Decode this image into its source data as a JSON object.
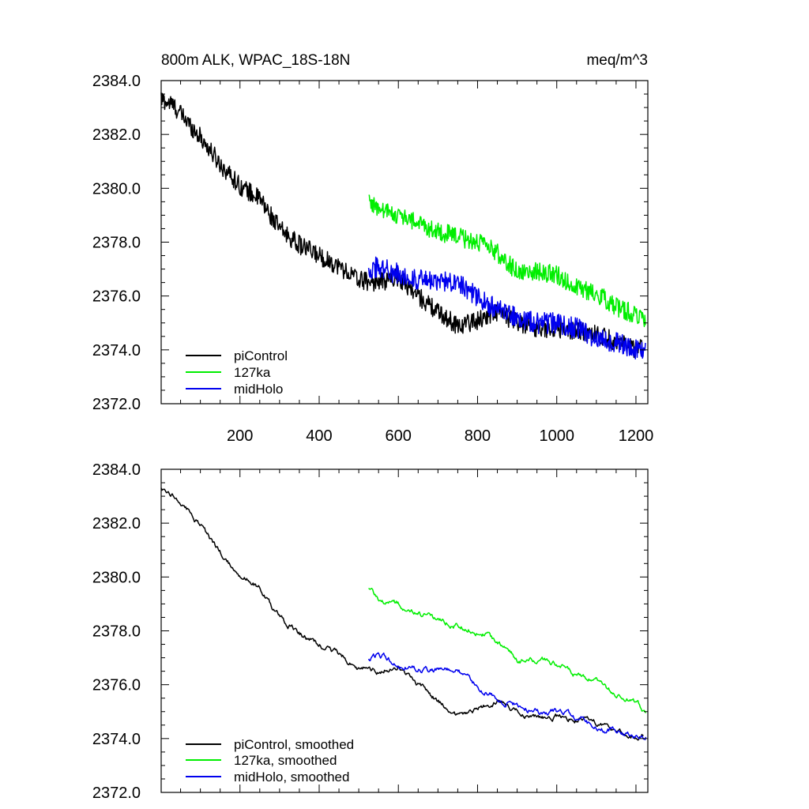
{
  "colors": {
    "piControl": "#000000",
    "127ka": "#00ee00",
    "midHolo": "#0000ee"
  },
  "chart_data": [
    {
      "type": "line",
      "title": "800m ALK, WPAC_18S-18N",
      "units": "meq/m^3",
      "xlim": [
        1,
        1230
      ],
      "ylim": [
        2372.0,
        2384.0
      ],
      "xticks": [
        200,
        400,
        600,
        800,
        1000,
        1200
      ],
      "xtick_labels": [
        "200",
        "400",
        "600",
        "800",
        "1000",
        "1200"
      ],
      "yticks": [
        "2384.0",
        "2382.0",
        "2380.0",
        "2378.0",
        "2376.0",
        "2374.0",
        "2372.0"
      ],
      "legend_position": "bottom-left",
      "series": [
        {
          "name": "piControl",
          "color": "#000000",
          "noise": 0.35,
          "x": [
            1,
            30,
            60,
            100,
            150,
            200,
            250,
            300,
            350,
            400,
            450,
            500,
            550,
            600,
            650,
            700,
            750,
            800,
            850,
            900,
            950,
            1000,
            1050,
            1100,
            1150,
            1200,
            1220
          ],
          "y": [
            2383.3,
            2383.1,
            2382.6,
            2381.9,
            2380.9,
            2380.1,
            2379.6,
            2378.5,
            2377.9,
            2377.5,
            2377.1,
            2376.6,
            2376.5,
            2376.7,
            2376.0,
            2375.4,
            2374.9,
            2375.1,
            2375.4,
            2375.0,
            2374.8,
            2374.8,
            2374.7,
            2374.6,
            2374.3,
            2374.0,
            2374.1
          ]
        },
        {
          "name": "127ka",
          "color": "#00ee00",
          "noise": 0.35,
          "x": [
            525,
            550,
            600,
            650,
            700,
            750,
            800,
            850,
            900,
            950,
            1000,
            1050,
            1100,
            1150,
            1200,
            1225
          ],
          "y": [
            2379.6,
            2379.2,
            2379.0,
            2378.7,
            2378.4,
            2378.2,
            2378.0,
            2377.6,
            2376.9,
            2376.9,
            2376.8,
            2376.3,
            2376.1,
            2375.6,
            2375.3,
            2375.0
          ]
        },
        {
          "name": "midHolo",
          "color": "#0000ee",
          "noise": 0.4,
          "x": [
            525,
            550,
            600,
            650,
            700,
            750,
            800,
            850,
            900,
            950,
            1000,
            1050,
            1100,
            1150,
            1200,
            1225
          ],
          "y": [
            2377.0,
            2377.1,
            2376.8,
            2376.6,
            2376.5,
            2376.6,
            2375.9,
            2375.5,
            2375.2,
            2375.0,
            2375.0,
            2374.8,
            2374.4,
            2374.3,
            2374.0,
            2374.1
          ]
        }
      ]
    },
    {
      "type": "line",
      "title": "",
      "xlim": [
        1,
        1230
      ],
      "ylim": [
        2372.0,
        2384.0
      ],
      "xticks": [
        200,
        400,
        600,
        800,
        1000,
        1200
      ],
      "xtick_labels": [],
      "yticks": [
        "2384.0",
        "2382.0",
        "2380.0",
        "2378.0",
        "2376.0",
        "2374.0",
        "2372.0"
      ],
      "legend_position": "bottom-left",
      "series": [
        {
          "name": "piControl, smoothed",
          "color": "#000000",
          "noise": 0.12,
          "x": [
            1,
            30,
            60,
            100,
            150,
            200,
            250,
            300,
            350,
            400,
            450,
            500,
            550,
            600,
            650,
            700,
            750,
            800,
            850,
            900,
            950,
            1000,
            1050,
            1100,
            1150,
            1200,
            1220
          ],
          "y": [
            2383.3,
            2383.1,
            2382.6,
            2381.9,
            2380.9,
            2380.1,
            2379.6,
            2378.5,
            2377.9,
            2377.5,
            2377.1,
            2376.6,
            2376.5,
            2376.7,
            2376.0,
            2375.4,
            2374.9,
            2375.1,
            2375.4,
            2375.0,
            2374.8,
            2374.8,
            2374.7,
            2374.6,
            2374.3,
            2374.0,
            2374.1
          ]
        },
        {
          "name": "127ka, smoothed",
          "color": "#00ee00",
          "noise": 0.12,
          "x": [
            525,
            550,
            600,
            650,
            700,
            750,
            800,
            850,
            900,
            950,
            1000,
            1050,
            1100,
            1150,
            1200,
            1225
          ],
          "y": [
            2379.6,
            2379.2,
            2379.0,
            2378.7,
            2378.4,
            2378.2,
            2378.0,
            2377.6,
            2376.9,
            2376.9,
            2376.8,
            2376.3,
            2376.1,
            2375.6,
            2375.3,
            2375.0
          ]
        },
        {
          "name": "midHolo, smoothed",
          "color": "#0000ee",
          "noise": 0.13,
          "x": [
            525,
            550,
            600,
            650,
            700,
            750,
            800,
            850,
            900,
            950,
            1000,
            1050,
            1100,
            1150,
            1200,
            1225
          ],
          "y": [
            2377.0,
            2377.1,
            2376.8,
            2376.6,
            2376.5,
            2376.6,
            2375.9,
            2375.5,
            2375.2,
            2375.0,
            2375.0,
            2374.8,
            2374.4,
            2374.3,
            2374.0,
            2374.1
          ]
        }
      ]
    }
  ]
}
